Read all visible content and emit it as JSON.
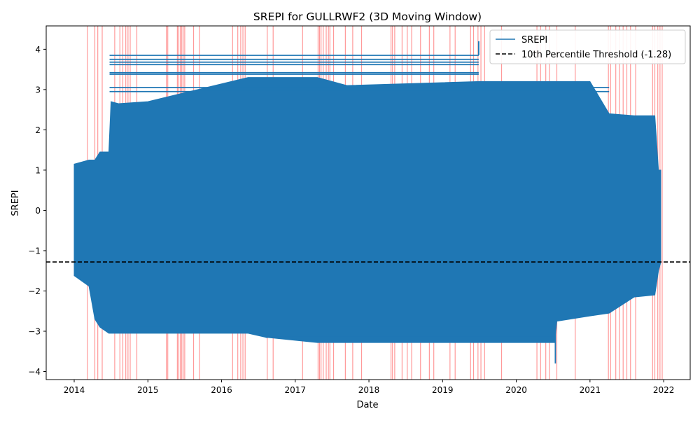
{
  "chart_data": {
    "type": "line",
    "title": "SREPI for GULLRWF2 (3D Moving Window)",
    "xlabel": "Date",
    "ylabel": "SREPI",
    "x_ticks": [
      "2014",
      "2015",
      "2016",
      "2017",
      "2018",
      "2019",
      "2020",
      "2021",
      "2022"
    ],
    "y_ticks": [
      "4",
      "3",
      "2",
      "1",
      "0",
      "−1",
      "−2",
      "−3",
      "−4"
    ],
    "xlim": [
      2013.62,
      2022.36
    ],
    "ylim": [
      -4.2,
      4.58
    ],
    "grid": false,
    "legend_position": "top-right",
    "series": [
      {
        "name": "SREPI",
        "color": "#1f77b4",
        "x_range": [
          2014.0,
          2021.96
        ],
        "note_values": [
          -3.8,
          4.2
        ],
        "envelope": [
          {
            "x": 2014.0,
            "high": 1.15,
            "low": -1.62
          },
          {
            "x": 2014.2,
            "high": 1.25,
            "low": -1.88
          },
          {
            "x": 2014.28,
            "high": 1.25,
            "low": -2.7
          },
          {
            "x": 2014.35,
            "high": 1.45,
            "low": -2.9
          },
          {
            "x": 2014.47,
            "high": 1.45,
            "low": -3.05
          },
          {
            "x": 2014.5,
            "high": 2.7,
            "low": -3.05
          },
          {
            "x": 2014.6,
            "high": 2.65,
            "low": -3.05
          },
          {
            "x": 2015.0,
            "high": 2.7,
            "low": -3.05
          },
          {
            "x": 2016.36,
            "high": 3.3,
            "low": -3.05
          },
          {
            "x": 2016.6,
            "high": 3.3,
            "low": -3.15
          },
          {
            "x": 2017.3,
            "high": 3.3,
            "low": -3.28
          },
          {
            "x": 2017.7,
            "high": 3.1,
            "low": -3.28
          },
          {
            "x": 2019.5,
            "high": 3.2,
            "low": -3.28
          },
          {
            "x": 2020.52,
            "high": 3.2,
            "low": -3.28
          },
          {
            "x": 2020.55,
            "high": 3.2,
            "low": -2.75
          },
          {
            "x": 2021.0,
            "high": 3.2,
            "low": -2.62
          },
          {
            "x": 2021.26,
            "high": 2.4,
            "low": -2.55
          },
          {
            "x": 2021.6,
            "high": 2.35,
            "low": -2.15
          },
          {
            "x": 2021.88,
            "high": 2.35,
            "low": -2.1
          },
          {
            "x": 2021.93,
            "high": 1.0,
            "low": -1.5
          },
          {
            "x": 2021.96,
            "high": 1.0,
            "low": -1.3
          }
        ],
        "horizontal_traces": [
          {
            "x0": 2014.48,
            "x1": 2019.49,
            "y": 3.85
          },
          {
            "x0": 2014.48,
            "x1": 2019.49,
            "y": 3.75
          },
          {
            "x0": 2014.48,
            "x1": 2019.49,
            "y": 3.68
          },
          {
            "x0": 2014.48,
            "x1": 2019.49,
            "y": 3.62
          },
          {
            "x0": 2014.48,
            "x1": 2019.49,
            "y": 3.42
          },
          {
            "x0": 2014.48,
            "x1": 2019.49,
            "y": 3.38
          },
          {
            "x0": 2014.48,
            "x1": 2021.26,
            "y": 3.05
          },
          {
            "x0": 2014.48,
            "x1": 2021.26,
            "y": 2.95
          },
          {
            "x0": 2014.48,
            "x1": 2020.52,
            "y": -2.9
          },
          {
            "x0": 2016.6,
            "x1": 2020.52,
            "y": -3.15
          },
          {
            "x0": 2017.3,
            "x1": 2020.52,
            "y": -3.25
          }
        ]
      },
      {
        "name": "10th Percentile Threshold (-1.28)",
        "type": "hline",
        "y": -1.28,
        "color": "#000000",
        "linestyle": "dashed"
      }
    ],
    "drought_spans": {
      "color": "#ff0000",
      "dates": [
        2014.18,
        2014.28,
        2014.32,
        2014.38,
        2014.55,
        2014.62,
        2014.66,
        2014.7,
        2014.73,
        2014.76,
        2014.85,
        2015.25,
        2015.27,
        2015.4,
        2015.42,
        2015.44,
        2015.46,
        2015.48,
        2015.5,
        2015.62,
        2015.7,
        2016.15,
        2016.22,
        2016.26,
        2016.29,
        2016.32,
        2016.62,
        2016.7,
        2017.1,
        2017.31,
        2017.33,
        2017.35,
        2017.38,
        2017.42,
        2017.45,
        2017.47,
        2017.52,
        2017.68,
        2017.78,
        2017.9,
        2018.3,
        2018.32,
        2018.35,
        2018.45,
        2018.52,
        2018.58,
        2018.7,
        2018.82,
        2018.88,
        2019.1,
        2019.17,
        2019.38,
        2019.42,
        2019.48,
        2019.52,
        2019.57,
        2019.8,
        2020.28,
        2020.33,
        2020.4,
        2020.45,
        2020.55,
        2020.8,
        2021.25,
        2021.28,
        2021.35,
        2021.4,
        2021.45,
        2021.5,
        2021.55,
        2021.62,
        2021.85,
        2021.88,
        2021.92,
        2021.95,
        2021.98
      ]
    }
  }
}
